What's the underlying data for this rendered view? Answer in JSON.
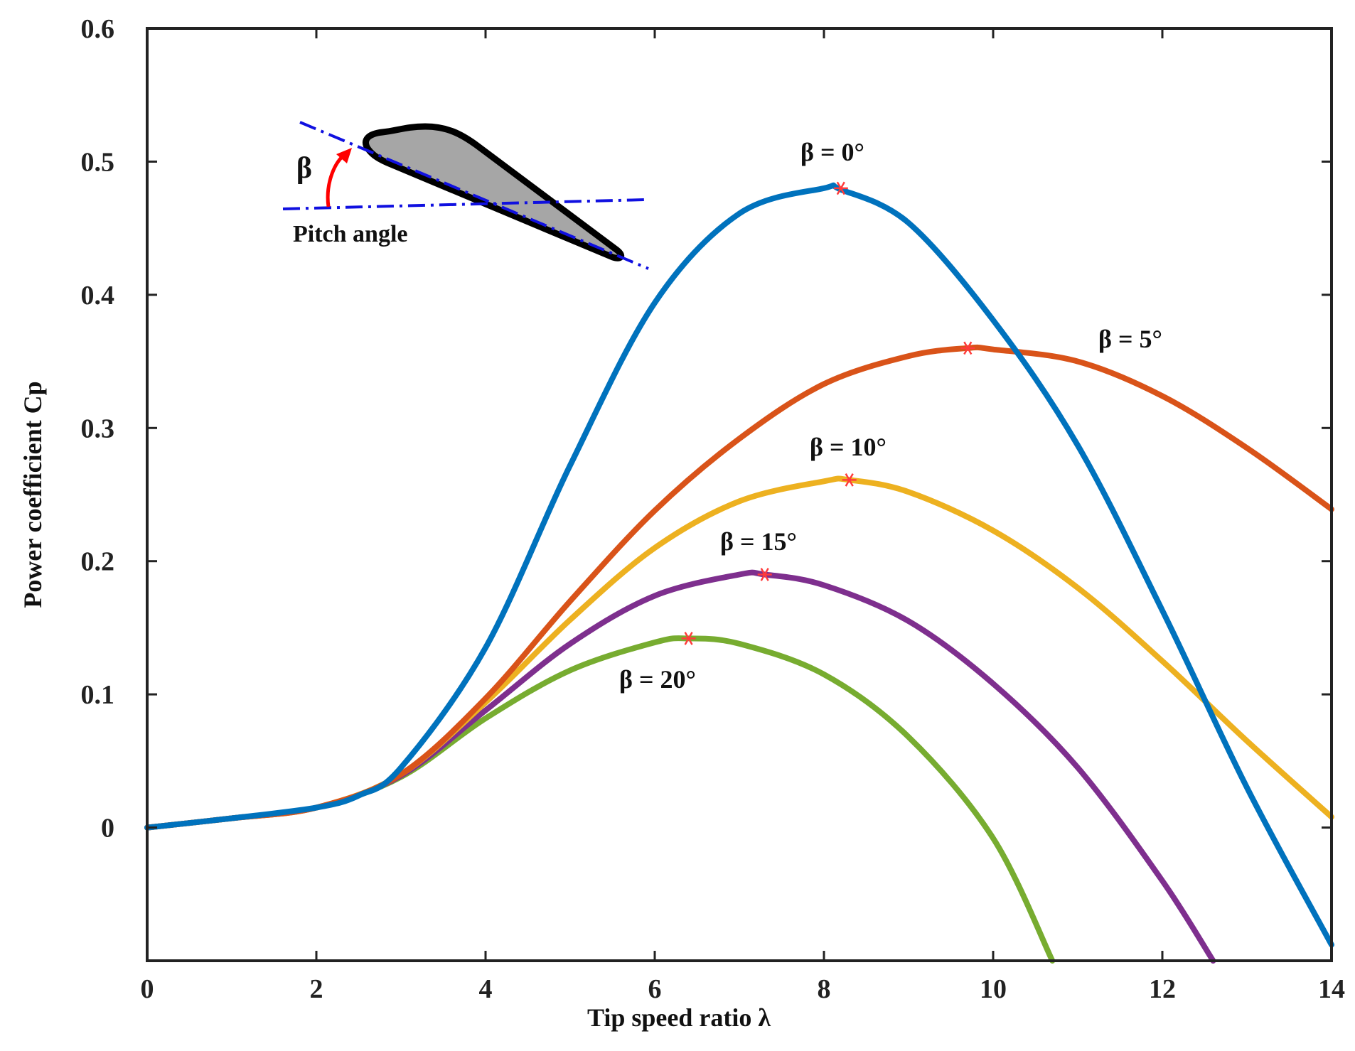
{
  "chart_data": {
    "type": "line",
    "xlabel": "Tip   speed ratio λ",
    "ylabel": "Power coefficient Cp",
    "xlim": [
      0,
      14
    ],
    "ylim": [
      -0.1,
      0.6
    ],
    "xticks": [
      0,
      2,
      4,
      6,
      8,
      10,
      12,
      14
    ],
    "xtick_labels": [
      "0",
      "2",
      "4",
      "6",
      "8",
      "10",
      "12",
      "14"
    ],
    "yticks": [
      0,
      0.1,
      0.2,
      0.3,
      0.4,
      0.5,
      0.6
    ],
    "ytick_labels": [
      "0",
      "0.1",
      "0.2",
      "0.3",
      "0.4",
      "0.5",
      "0.6"
    ],
    "grid": false,
    "series": [
      {
        "name": "β = 0°",
        "color": "#0072BD",
        "x": [
          0,
          1,
          2,
          2.5,
          3,
          4,
          5,
          6,
          7,
          8,
          8.2,
          9,
          10,
          11,
          12,
          13,
          14
        ],
        "y": [
          0,
          0.007,
          0.015,
          0.024,
          0.045,
          0.135,
          0.272,
          0.394,
          0.461,
          0.48,
          0.479,
          0.454,
          0.381,
          0.287,
          0.163,
          0.03,
          -0.088
        ],
        "peak": {
          "x": 8.2,
          "y": 0.48
        }
      },
      {
        "name": "β = 5°",
        "color": "#D95319",
        "x": [
          0,
          1,
          2,
          3,
          4,
          5,
          6,
          7,
          8,
          9,
          9.7,
          10,
          11,
          12,
          13,
          14
        ],
        "y": [
          0,
          0.007,
          0.015,
          0.04,
          0.097,
          0.17,
          0.238,
          0.292,
          0.333,
          0.354,
          0.36,
          0.359,
          0.35,
          0.324,
          0.285,
          0.239
        ],
        "peak": {
          "x": 9.7,
          "y": 0.36
        }
      },
      {
        "name": "β = 10°",
        "color": "#EDB120",
        "x": [
          0,
          1,
          2,
          3,
          4,
          5,
          6,
          7,
          8,
          8.3,
          9,
          10,
          11,
          12,
          13,
          14
        ],
        "y": [
          0,
          0.007,
          0.015,
          0.04,
          0.094,
          0.156,
          0.21,
          0.245,
          0.26,
          0.261,
          0.252,
          0.223,
          0.18,
          0.125,
          0.065,
          0.008
        ],
        "peak": {
          "x": 8.3,
          "y": 0.261
        }
      },
      {
        "name": "β = 15°",
        "color": "#7E2F8E",
        "x": [
          0,
          1,
          2,
          3,
          4,
          5,
          6,
          7,
          7.3,
          8,
          9,
          10,
          11,
          12,
          12.6
        ],
        "y": [
          0,
          0.007,
          0.015,
          0.039,
          0.088,
          0.138,
          0.174,
          0.19,
          0.19,
          0.182,
          0.155,
          0.108,
          0.045,
          -0.04,
          -0.1
        ],
        "peak": {
          "x": 7.3,
          "y": 0.19
        }
      },
      {
        "name": "β = 20°",
        "color": "#77AC30",
        "x": [
          0,
          1,
          2,
          3,
          4,
          5,
          6,
          6.4,
          7,
          8,
          9,
          10,
          10.7
        ],
        "y": [
          0,
          0.007,
          0.015,
          0.038,
          0.082,
          0.118,
          0.139,
          0.142,
          0.138,
          0.115,
          0.068,
          -0.008,
          -0.1
        ],
        "peak": {
          "x": 6.4,
          "y": 0.142
        }
      }
    ],
    "annotations": [
      {
        "text": "β = 0°",
        "series": 0
      },
      {
        "text": "β = 5°",
        "series": 1
      },
      {
        "text": "β = 10°",
        "series": 2
      },
      {
        "text": "β = 15°",
        "series": 3
      },
      {
        "text": "β = 20°",
        "series": 4
      }
    ],
    "inset": {
      "beta_symbol": "β",
      "caption": "Pitch angle",
      "airfoil_fill": "#A6A6A6",
      "line_color": "#1010E0",
      "arrow_color": "#FF0000"
    },
    "peak_marker_color": "#FF3B3B"
  }
}
